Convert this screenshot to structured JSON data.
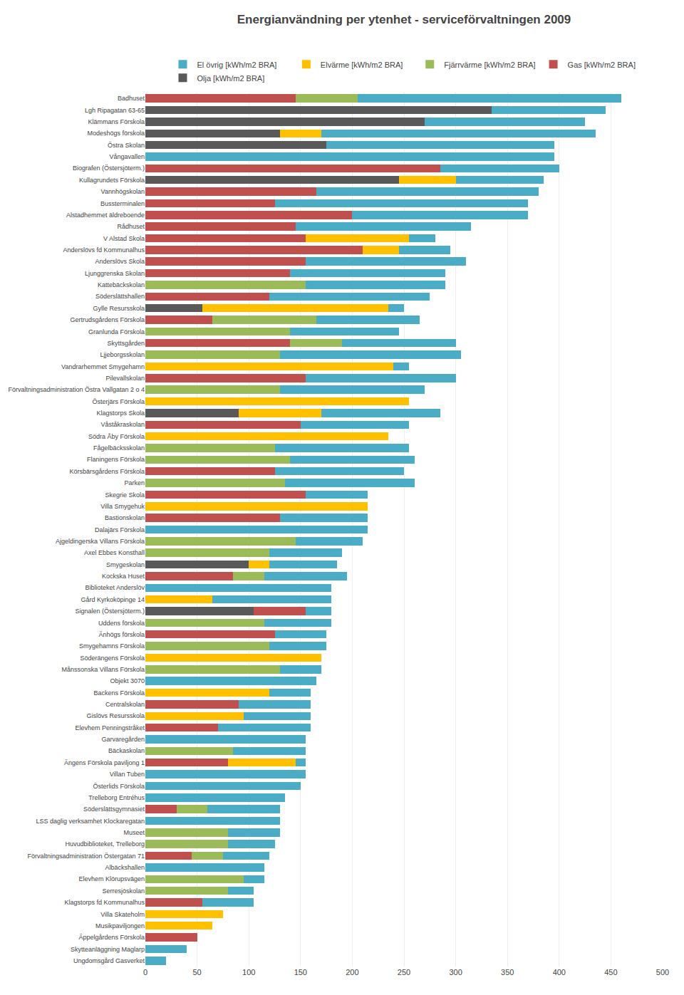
{
  "chart_data": {
    "type": "bar",
    "orientation": "horizontal",
    "stacked": true,
    "title": "Energianvändning per ytenhet - serviceförvaltningen 2009",
    "categories": [
      "Badhuset",
      "Lgh Ripagatan 63-65",
      "Klämmans Förskola",
      "Modeshögs förskola",
      "Östra Skolan",
      "Vångavallen",
      "Biografen (Östersjöterm.)",
      "Kullagrundets Förskola",
      "Vannhögskolan",
      "Bussterminalen",
      "Alstadhemmet äldreboende",
      "Rådhuset",
      "V Alstad Skola",
      "Anderslövs fd Kommunalhus",
      "Anderslövs Skola",
      "Ljunggrenska Skolan",
      "Kattebäckskolan",
      "Söderslättshallen",
      "Gylle Resursskola",
      "Gertrudsgårdens Förskola",
      "Granlunda Förskola",
      "Skyttsgården",
      "Ljjeborgsskolan",
      "Vandrarhemmet Smygehamn",
      "Pilevallskolan",
      "Förvaltningsadministration Östra Vallgatan 2 o 4",
      "Österjärs Förskola",
      "Klagstorps Skola",
      "Våståkraskolan",
      "Södra Åby Förskola",
      "Fågelbäcksskolan",
      "Flaningens Förskola",
      "Körsbärsgårdens Förskola",
      "Parken",
      "Skegrie Skola",
      "Villa Smygehuk",
      "Bastionskolan",
      "Dalajärs Förskola",
      "Ajgeldingerska Villans Förskola",
      "Axel Ebbes Konsthall",
      "Smygeskolan",
      "Kockska Huset",
      "Biblioteket Anderslöv",
      "Gård Kyrkoköpinge 14",
      "Signalen (Östersjöterm.)",
      "Uddens förskola",
      "Änhögs förskola",
      "Smygehamns Förskola",
      "Söderängens Förskola",
      "Månssonska Villans Förskola",
      "Objekt 3070",
      "Backens Förskola",
      "Centralskolan",
      "Gislövs Resursskola",
      "Elevhem Penningstråket",
      "Garvaregården",
      "Bäckaskolan",
      "Ängens Förskola paviljong 1",
      "Villan Tuben",
      "Österlids Förskola",
      "Trelleborg Entréhus",
      "Söderslättsgymnasiet",
      "LSS daglig verksamhet Klockaregatan",
      "Museet",
      "Huvudbiblioteket, Trelleborg",
      "Förvaltningsadministration Östergatan 71",
      "Albäckshallen",
      "Elevhem Klörupsvägen",
      "Serresjöskolan",
      "Klagstorps fd Kommunalhus",
      "Villa Skateholm",
      "Musikpaviljongen",
      "Äppelgårdens Förskola",
      "Skytteanläggning Maglarp",
      "Ungdomsgård Gasverket"
    ],
    "series": [
      {
        "name": "Olja [kWh/m2 BRA]",
        "color": "#595959",
        "values": [
          0,
          335,
          270,
          130,
          175,
          0,
          0,
          245,
          0,
          0,
          0,
          0,
          0,
          0,
          0,
          0,
          0,
          0,
          55,
          0,
          0,
          0,
          0,
          0,
          0,
          0,
          0,
          90,
          0,
          0,
          0,
          0,
          0,
          0,
          0,
          0,
          0,
          0,
          0,
          0,
          100,
          0,
          0,
          0,
          105,
          0,
          0,
          0,
          0,
          0,
          0,
          0,
          0,
          0,
          0,
          0,
          0,
          0,
          0,
          0,
          0,
          0,
          0,
          0,
          0,
          0,
          0,
          0,
          0,
          0,
          0,
          0,
          0,
          0,
          0
        ]
      },
      {
        "name": "Gas [kWh/m2 BRA]",
        "color": "#c0504d",
        "values": [
          145,
          0,
          0,
          0,
          0,
          0,
          285,
          0,
          165,
          125,
          200,
          145,
          155,
          210,
          155,
          140,
          0,
          120,
          0,
          65,
          0,
          140,
          0,
          0,
          155,
          0,
          0,
          0,
          150,
          0,
          0,
          0,
          125,
          0,
          155,
          0,
          130,
          0,
          0,
          0,
          0,
          85,
          0,
          0,
          50,
          0,
          125,
          0,
          0,
          0,
          0,
          0,
          90,
          0,
          70,
          0,
          0,
          80,
          0,
          0,
          0,
          30,
          0,
          0,
          0,
          45,
          0,
          0,
          0,
          55,
          0,
          0,
          50,
          0,
          0
        ]
      },
      {
        "name": "Fjärrvärme [kWh/m2 BRA]",
        "color": "#9bbb59",
        "values": [
          60,
          0,
          0,
          0,
          0,
          0,
          0,
          0,
          0,
          0,
          0,
          0,
          0,
          0,
          0,
          0,
          155,
          0,
          0,
          100,
          140,
          50,
          130,
          0,
          0,
          130,
          0,
          0,
          0,
          0,
          125,
          140,
          0,
          135,
          0,
          0,
          0,
          0,
          145,
          120,
          0,
          30,
          0,
          0,
          0,
          115,
          0,
          120,
          0,
          130,
          0,
          0,
          0,
          0,
          0,
          0,
          85,
          0,
          0,
          0,
          0,
          30,
          0,
          80,
          80,
          30,
          0,
          95,
          80,
          0,
          0,
          0,
          0,
          0,
          0
        ]
      },
      {
        "name": "Elvärme [kWh/m2 BRA]",
        "color": "#ffc000",
        "values": [
          0,
          0,
          0,
          40,
          0,
          0,
          0,
          55,
          0,
          0,
          0,
          0,
          100,
          35,
          0,
          0,
          0,
          0,
          180,
          0,
          0,
          0,
          0,
          240,
          0,
          0,
          255,
          80,
          0,
          235,
          0,
          0,
          0,
          0,
          0,
          215,
          0,
          0,
          0,
          0,
          20,
          0,
          0,
          65,
          0,
          0,
          0,
          0,
          170,
          0,
          0,
          120,
          0,
          95,
          0,
          0,
          0,
          65,
          0,
          0,
          0,
          0,
          0,
          0,
          0,
          0,
          0,
          0,
          0,
          0,
          75,
          65,
          0,
          0,
          0
        ]
      },
      {
        "name": "El övrig [kWh/m2 BRA]",
        "color": "#4bacc6",
        "values": [
          255,
          110,
          155,
          265,
          220,
          395,
          115,
          85,
          215,
          245,
          170,
          170,
          25,
          50,
          155,
          150,
          135,
          155,
          15,
          100,
          105,
          110,
          175,
          15,
          145,
          140,
          0,
          115,
          105,
          0,
          130,
          120,
          125,
          125,
          60,
          0,
          85,
          215,
          65,
          70,
          65,
          80,
          180,
          115,
          25,
          65,
          50,
          55,
          0,
          40,
          165,
          40,
          70,
          65,
          90,
          155,
          70,
          10,
          155,
          150,
          135,
          70,
          130,
          50,
          45,
          45,
          115,
          20,
          25,
          50,
          0,
          0,
          0,
          40,
          20
        ]
      }
    ],
    "xlim": [
      0,
      500
    ],
    "xticks": [
      0,
      50,
      100,
      150,
      200,
      250,
      300,
      350,
      400,
      450,
      500
    ],
    "grid": true,
    "legend": "top"
  }
}
